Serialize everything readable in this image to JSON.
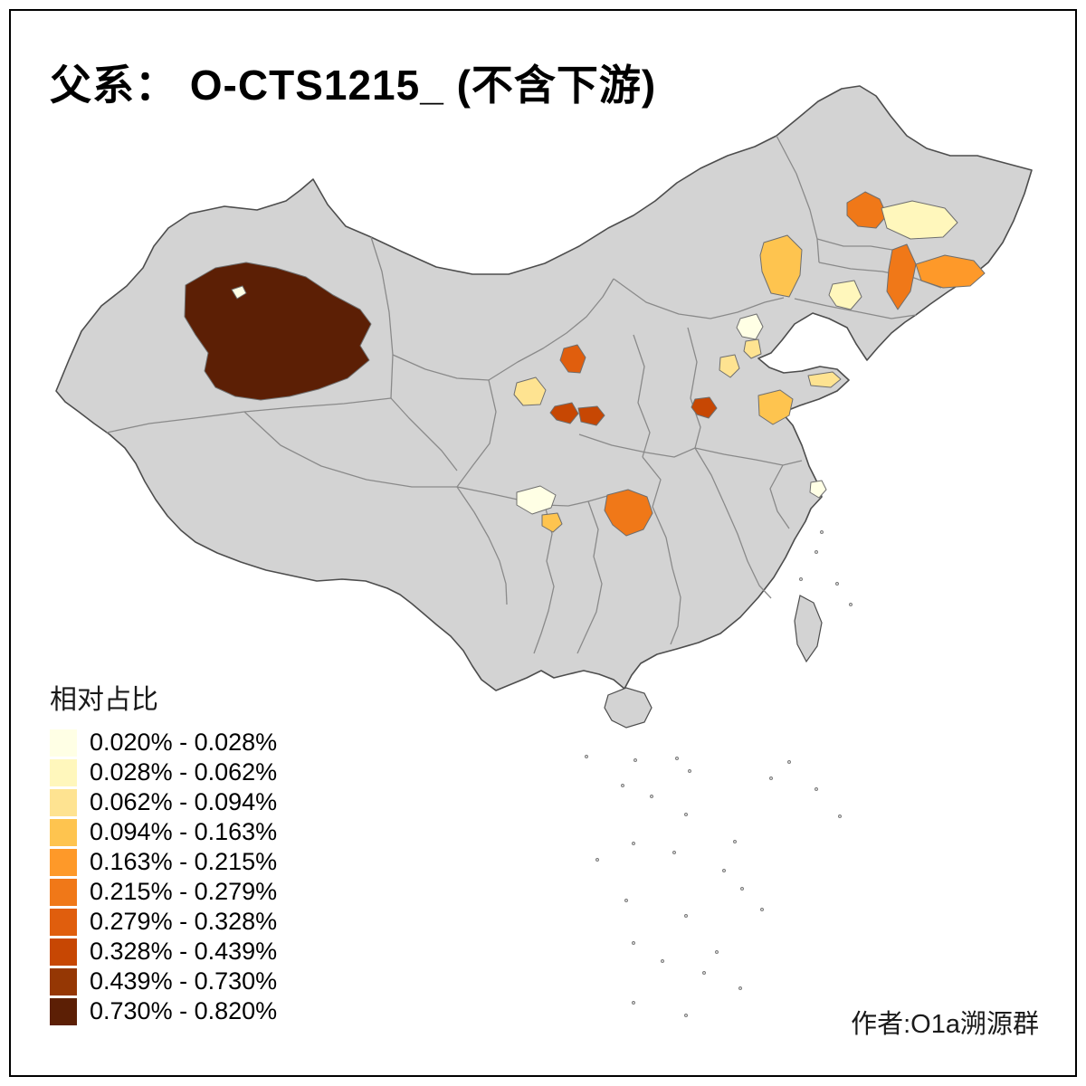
{
  "header": {
    "title": "父系： O-CTS1215_ (不含下游)"
  },
  "credit": {
    "text": "作者:O1a溯源群"
  },
  "legend": {
    "title": "相对占比"
  },
  "map": {
    "land_fill": "#d3d3d3",
    "outline_color": "#4d4d4d",
    "province_border_color": "#8a8a8a",
    "island_dot_fill": "#c9c9c9"
  },
  "chart_data": {
    "type": "choropleth",
    "title": "父系： O-CTS1215_ (不含下游)",
    "legend_title": "相对占比",
    "bins": [
      {
        "label": "0.020% - 0.028%",
        "color": "#FFFFE5"
      },
      {
        "label": "0.028% - 0.062%",
        "color": "#FFF7BC"
      },
      {
        "label": "0.062% - 0.094%",
        "color": "#FEE391"
      },
      {
        "label": "0.094% - 0.163%",
        "color": "#FEC44F"
      },
      {
        "label": "0.163% - 0.215%",
        "color": "#FE9929"
      },
      {
        "label": "0.215% - 0.279%",
        "color": "#F07818"
      },
      {
        "label": "0.279% - 0.328%",
        "color": "#E05E0D"
      },
      {
        "label": "0.328% - 0.439%",
        "color": "#C74703"
      },
      {
        "label": "0.439% - 0.730%",
        "color": "#953704"
      },
      {
        "label": "0.730% - 0.820%",
        "color": "#5C1F05"
      }
    ],
    "regions": [
      {
        "area": "southern-xinjiang-large",
        "bin": 10,
        "range": "0.730% - 0.820%"
      },
      {
        "area": "xinjiang-small-enclave",
        "bin": 1,
        "range": "0.020% - 0.028%"
      },
      {
        "area": "heilongjiang-west",
        "bin": 6,
        "range": "0.215% - 0.279%"
      },
      {
        "area": "heilongjiang-harbin",
        "bin": 2,
        "range": "0.028% - 0.062%"
      },
      {
        "area": "inner-mongolia-east",
        "bin": 4,
        "range": "0.094% - 0.163%"
      },
      {
        "area": "jilin-changchun",
        "bin": 2,
        "range": "0.028% - 0.062%"
      },
      {
        "area": "jilin-city",
        "bin": 6,
        "range": "0.215% - 0.279%"
      },
      {
        "area": "jilin-yanbian",
        "bin": 5,
        "range": "0.163% - 0.215%"
      },
      {
        "area": "beijing",
        "bin": 1,
        "range": "0.020% - 0.028%"
      },
      {
        "area": "tianjin-area",
        "bin": 3,
        "range": "0.062% - 0.094%"
      },
      {
        "area": "hebei-central",
        "bin": 3,
        "range": "0.062% - 0.094%"
      },
      {
        "area": "hebei-south",
        "bin": 8,
        "range": "0.328% - 0.439%"
      },
      {
        "area": "shandong-west",
        "bin": 4,
        "range": "0.094% - 0.163%"
      },
      {
        "area": "shandong-peninsula-tip",
        "bin": 3,
        "range": "0.062% - 0.094%"
      },
      {
        "area": "gansu-north",
        "bin": 7,
        "range": "0.279% - 0.328%"
      },
      {
        "area": "gansu-west-pale",
        "bin": 3,
        "range": "0.062% - 0.094%"
      },
      {
        "area": "gansu-southeast-a",
        "bin": 8,
        "range": "0.328% - 0.439%"
      },
      {
        "area": "gansu-southeast-b",
        "bin": 8,
        "range": "0.328% - 0.439%"
      },
      {
        "area": "sichuan-chengdu",
        "bin": 1,
        "range": "0.020% - 0.028%"
      },
      {
        "area": "sichuan-south-small",
        "bin": 4,
        "range": "0.094% - 0.163%"
      },
      {
        "area": "chongqing-area",
        "bin": 6,
        "range": "0.215% - 0.279%"
      },
      {
        "area": "shanghai-area",
        "bin": 1,
        "range": "0.020% - 0.028%"
      }
    ]
  }
}
